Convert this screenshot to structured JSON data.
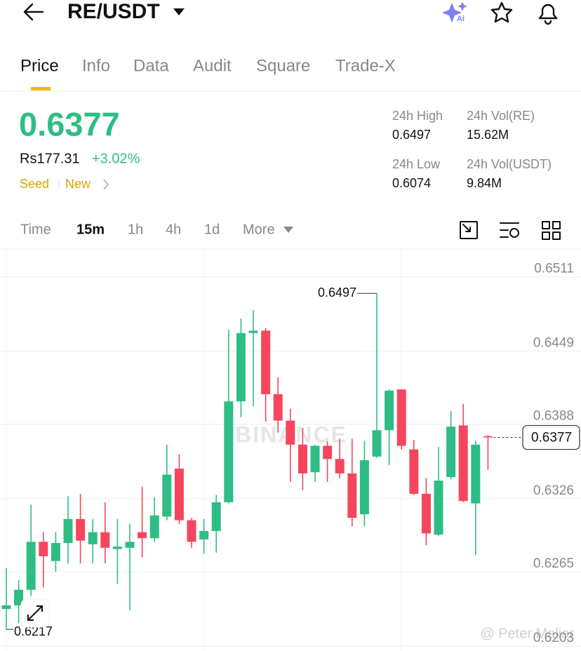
{
  "header": {
    "pair": "RE/USDT"
  },
  "tabs": [
    "Price",
    "Info",
    "Data",
    "Audit",
    "Square",
    "Trade-X"
  ],
  "price": {
    "last": "0.6377",
    "fiat": "Rs177.31",
    "change": "+3.02%",
    "tags": [
      "Seed",
      "New"
    ]
  },
  "stats": [
    {
      "label": "24h High",
      "value": "0.6497"
    },
    {
      "label": "24h Vol(RE)",
      "value": "15.62M"
    },
    {
      "label": "24h Low",
      "value": "0.6074"
    },
    {
      "label": "24h Vol(USDT)",
      "value": "9.84M"
    }
  ],
  "timeframes": [
    "Time",
    "15m",
    "1h",
    "4h",
    "1d",
    "More"
  ],
  "watermarks": [
    "BINANCE",
    "@ Peter Maliar"
  ],
  "chart_data": {
    "type": "candlestick",
    "up_color": "#2ebd85",
    "down_color": "#f6465d",
    "open": [
      0.6234,
      0.6237,
      0.625,
      0.629,
      0.6274,
      0.6289,
      0.6309,
      0.6288,
      0.6298,
      0.6284,
      0.6285,
      0.6298,
      0.6293,
      0.6311,
      0.6351,
      0.6308,
      0.6292,
      0.6299,
      0.6323,
      0.6407,
      0.6464,
      0.6466,
      0.6413,
      0.6391,
      0.6371,
      0.6348,
      0.637,
      0.6359,
      0.6347,
      0.6313,
      0.6361,
      0.6383,
      0.6417,
      0.6367,
      0.633,
      0.6296,
      0.6344,
      0.6387,
      0.6322,
      0.6378
    ],
    "high": [
      0.6268,
      0.6258,
      0.6321,
      0.6298,
      0.6298,
      0.6328,
      0.633,
      0.6309,
      0.6323,
      0.6309,
      0.6305,
      0.6336,
      0.6327,
      0.6371,
      0.6363,
      0.631,
      0.6309,
      0.6329,
      0.6467,
      0.6476,
      0.6483,
      0.6468,
      0.6427,
      0.6401,
      0.6385,
      0.6371,
      0.6374,
      0.6376,
      0.6376,
      0.6374,
      0.6497,
      0.6417,
      0.6417,
      0.6375,
      0.6343,
      0.6369,
      0.6399,
      0.6405,
      0.6374,
      0.6379
    ],
    "low": [
      0.6217,
      0.6222,
      0.6245,
      0.6252,
      0.6265,
      0.6272,
      0.6272,
      0.6272,
      0.6272,
      0.6255,
      0.6233,
      0.6277,
      0.629,
      0.6308,
      0.6305,
      0.6285,
      0.628,
      0.6281,
      0.6322,
      0.6394,
      0.6403,
      0.639,
      0.6381,
      0.634,
      0.6333,
      0.634,
      0.634,
      0.6343,
      0.6303,
      0.6303,
      0.636,
      0.6354,
      0.6367,
      0.6329,
      0.6287,
      0.6295,
      0.6342,
      0.6323,
      0.6279,
      0.635
    ],
    "close": [
      0.6237,
      0.625,
      0.629,
      0.6278,
      0.6289,
      0.6309,
      0.6291,
      0.6298,
      0.6285,
      0.6286,
      0.629,
      0.6293,
      0.6312,
      0.6346,
      0.6308,
      0.629,
      0.6299,
      0.6323,
      0.6407,
      0.6464,
      0.6466,
      0.6413,
      0.6391,
      0.6371,
      0.6347,
      0.637,
      0.6359,
      0.6347,
      0.631,
      0.6358,
      0.6383,
      0.6416,
      0.637,
      0.633,
      0.6297,
      0.6341,
      0.6386,
      0.6324,
      0.6371,
      0.6377
    ],
    "ylim": [
      0.6199,
      0.6534
    ],
    "yticks": [
      0.6511,
      0.6449,
      0.6388,
      0.6326,
      0.6265,
      0.6203
    ],
    "grid": true,
    "high_marker": 0.6497,
    "low_marker": 0.6217,
    "last_price": 0.6377
  }
}
